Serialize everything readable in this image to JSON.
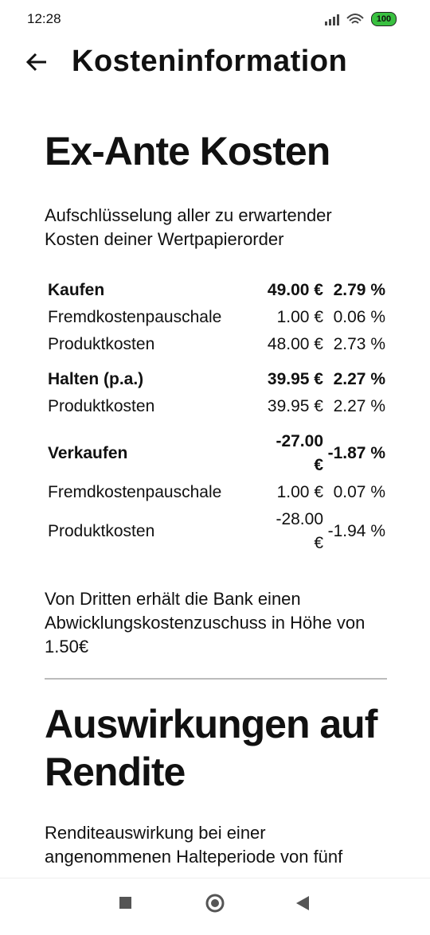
{
  "status_bar": {
    "time": "12:28",
    "battery": "100"
  },
  "header": {
    "title": "Kosteninformation"
  },
  "ex_ante": {
    "heading": "Ex-Ante Kosten",
    "intro": "Aufschlüsselung aller zu erwartender Kosten deiner Wertpapierorder",
    "groups": [
      {
        "label": "Kaufen",
        "amount": "49.00 €",
        "percent": "2.79 %",
        "rows": [
          [
            "Fremdkostenpauschale",
            "1.00 €",
            "0.06 %"
          ],
          [
            "Produktkosten",
            "48.00 €",
            "2.73 %"
          ]
        ]
      },
      {
        "label": "Halten (p.a.)",
        "amount": "39.95 €",
        "percent": "2.27 %",
        "rows": [
          [
            "Produktkosten",
            "39.95 €",
            "2.27 %"
          ]
        ]
      },
      {
        "label": "Verkaufen",
        "amount": "-27.00 €",
        "percent": "-1.87 %",
        "rows": [
          [
            "Fremdkostenpauschale",
            "1.00 €",
            "0.07 %"
          ],
          [
            "Produktkosten",
            "-28.00 €",
            "-1.94 %"
          ]
        ]
      }
    ],
    "note": "Von Dritten erhält die Bank einen Abwicklungskostenzuschuss in Höhe von 1.50€"
  },
  "rendite": {
    "heading": "Auswirkungen auf Rendite",
    "intro": "Renditeauswirkung bei einer angenommenen Halteperiode von fünf"
  }
}
